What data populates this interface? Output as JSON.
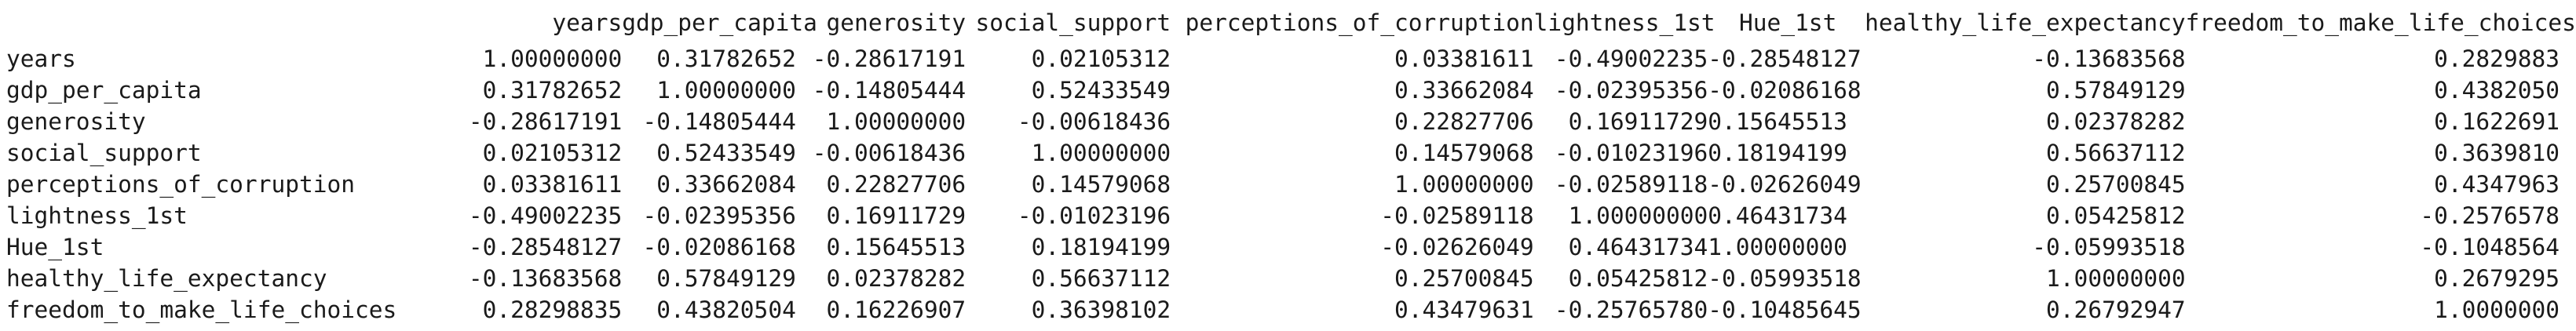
{
  "dataframe": {
    "corner": "",
    "columns": [
      "years",
      "gdp_per_capita",
      "generosity",
      "social_support",
      "perceptions_of_corruption",
      "lightness_1st",
      "Hue_1st",
      "healthy_life_expectancy",
      "freedom_to_make_life_choices"
    ],
    "rows": [
      {
        "label": "years",
        "values": [
          "1.00000000",
          "0.31782652",
          "-0.28617191",
          "0.02105312",
          "0.03381611",
          "-0.49002235",
          "-0.28548127",
          "-0.13683568",
          "0.2829883"
        ]
      },
      {
        "label": "gdp_per_capita",
        "values": [
          "0.31782652",
          "1.00000000",
          "-0.14805444",
          "0.52433549",
          "0.33662084",
          "-0.02395356",
          "-0.02086168",
          "0.57849129",
          "0.4382050"
        ]
      },
      {
        "label": "generosity",
        "values": [
          "-0.28617191",
          "-0.14805444",
          "1.00000000",
          "-0.00618436",
          "0.22827706",
          "0.16911729",
          "0.15645513",
          "0.02378282",
          "0.1622691"
        ]
      },
      {
        "label": "social_support",
        "values": [
          "0.02105312",
          "0.52433549",
          "-0.00618436",
          "1.00000000",
          "0.14579068",
          "-0.01023196",
          "0.18194199",
          "0.56637112",
          "0.3639810"
        ]
      },
      {
        "label": "perceptions_of_corruption",
        "values": [
          "0.03381611",
          "0.33662084",
          "0.22827706",
          "0.14579068",
          "1.00000000",
          "-0.02589118",
          "-0.02626049",
          "0.25700845",
          "0.4347963"
        ]
      },
      {
        "label": "lightness_1st",
        "values": [
          "-0.49002235",
          "-0.02395356",
          "0.16911729",
          "-0.01023196",
          "-0.02589118",
          "1.00000000",
          "0.46431734",
          "0.05425812",
          "-0.2576578"
        ]
      },
      {
        "label": "Hue_1st",
        "values": [
          "-0.28548127",
          "-0.02086168",
          "0.15645513",
          "0.18194199",
          "-0.02626049",
          "0.46431734",
          "1.00000000",
          "-0.05993518",
          "-0.1048564"
        ]
      },
      {
        "label": "healthy_life_expectancy",
        "values": [
          "-0.13683568",
          "0.57849129",
          "0.02378282",
          "0.56637112",
          "0.25700845",
          "0.05425812",
          "-0.05993518",
          "1.00000000",
          "0.2679295"
        ]
      },
      {
        "label": "freedom_to_make_life_choices",
        "values": [
          "0.28298835",
          "0.43820504",
          "0.16226907",
          "0.36398102",
          "0.43479631",
          "-0.25765780",
          "-0.10485645",
          "0.26792947",
          "1.0000000"
        ]
      }
    ]
  }
}
